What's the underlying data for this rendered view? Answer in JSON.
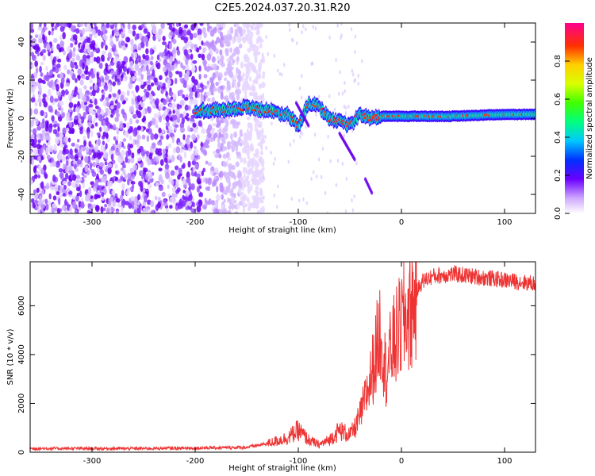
{
  "title": "C2E5.2024.037.20.31.R20",
  "chart_data": [
    {
      "type": "heatmap",
      "xlabel": "Height of straight line (km)",
      "ylabel": "Frequency (Hz)",
      "xlim": [
        -360,
        130
      ],
      "ylim": [
        -50,
        50
      ],
      "xticks": [
        -300,
        -200,
        -100,
        0,
        100
      ],
      "yticks": [
        -40,
        -20,
        0,
        20,
        40
      ],
      "colorbar": {
        "label": "Normalized spectral amplitude",
        "range": [
          0,
          1
        ],
        "ticks": [
          0.0,
          0.2,
          0.4,
          0.6,
          0.8
        ]
      },
      "trace": {
        "description_points_x": [
          -200,
          -190,
          -160,
          -150,
          -130,
          -110,
          -100,
          -90,
          -80,
          -70,
          -60,
          -50,
          -40,
          -30,
          -20,
          0,
          50,
          100,
          130
        ],
        "freq": [
          4,
          4,
          5,
          6,
          4,
          2,
          -4,
          8,
          6,
          0,
          -2,
          -4,
          2,
          0,
          1,
          1,
          1,
          2,
          2
        ]
      },
      "noise_region_x": [
        -360,
        -145
      ],
      "grid": false
    },
    {
      "type": "line",
      "xlabel": "Height of straight line (km)",
      "ylabel": "SNR (10 * v/v)",
      "xlim": [
        -360,
        130
      ],
      "ylim": [
        0,
        7800
      ],
      "xticks": [
        -300,
        -200,
        -100,
        0,
        100
      ],
      "yticks": [
        0,
        2000,
        4000,
        6000
      ],
      "color": "#ee3333",
      "x": [
        -360,
        -300,
        -250,
        -200,
        -150,
        -130,
        -110,
        -100,
        -90,
        -80,
        -70,
        -60,
        -50,
        -45,
        -40,
        -35,
        -30,
        -25,
        -20,
        -15,
        -10,
        -5,
        0,
        5,
        10,
        15,
        20,
        30,
        50,
        80,
        100,
        130
      ],
      "y": [
        150,
        150,
        150,
        170,
        200,
        350,
        600,
        900,
        500,
        300,
        500,
        900,
        700,
        1000,
        1500,
        2200,
        3000,
        4000,
        5200,
        3200,
        4200,
        4700,
        5200,
        5600,
        5900,
        6600,
        7000,
        7200,
        7300,
        7150,
        7050,
        6900
      ],
      "grid": false
    }
  ]
}
